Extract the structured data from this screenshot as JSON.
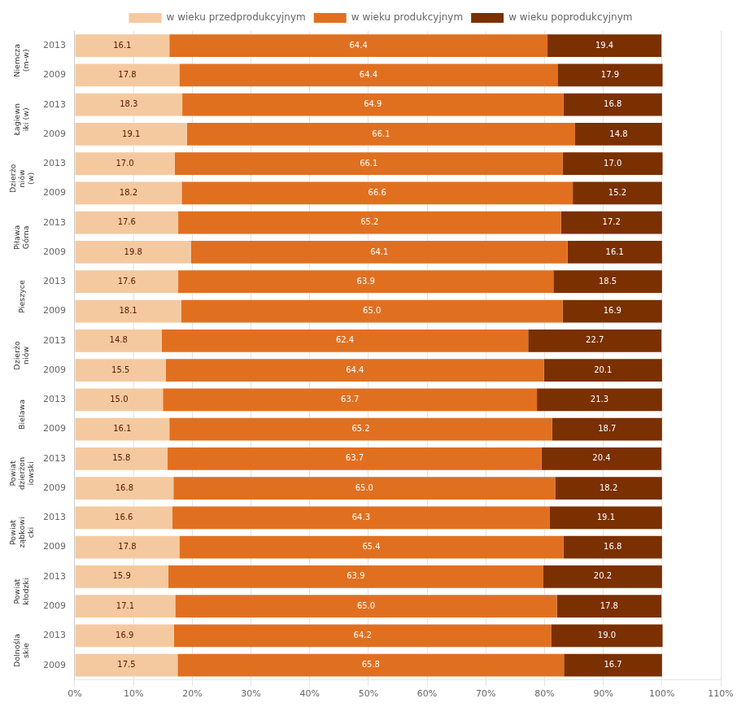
{
  "chart_data": {
    "type": "bar",
    "orientation": "horizontal",
    "stacked": true,
    "data_labels": true,
    "grid": "x",
    "legend": "top",
    "categories": [
      "2013",
      "2009",
      "2013",
      "2009",
      "2013",
      "2009",
      "2013",
      "2009",
      "2013",
      "2009",
      "2013",
      "2009",
      "2013",
      "2009",
      "2013",
      "2009",
      "2013",
      "2009",
      "2013",
      "2009",
      "2013",
      "2009"
    ],
    "group_labels": [
      "Niemcza\n(m-w)",
      "Łagiewn\niki (w)",
      "Dzierżo\nniów\n(w)",
      "Piława\nGórna",
      "Pieszyce",
      "Dzierżo\nniów",
      "Bielawa",
      "Powiat\ndzierżon\niowski",
      "Powiat\nząbkowi\ncki",
      "Powiat\nkłodzki",
      "Dolnośla\nskie"
    ],
    "series": [
      {
        "name": "w wieku przedprodukcyjnym",
        "color": "#f5c9a0",
        "values": [
          16.1,
          17.8,
          18.3,
          19.1,
          17.0,
          18.2,
          17.6,
          19.8,
          17.6,
          18.1,
          14.8,
          15.5,
          15.0,
          16.1,
          15.8,
          16.8,
          16.6,
          17.8,
          15.9,
          17.1,
          16.9,
          17.5
        ],
        "value_labels": [
          "16.1",
          "17.8",
          "18.3",
          "19.1",
          "17.0",
          "18.2",
          "17.6",
          "19.8",
          "17.6",
          "18.1",
          "14.8",
          "15.5",
          "15.0",
          "16.1",
          "15.8",
          "16.8",
          "16.6",
          "17.8",
          "15.9",
          "17.1",
          "16.9",
          "17.5"
        ]
      },
      {
        "name": "w wieku produkcyjnym",
        "color": "#e07020",
        "values": [
          64.4,
          64.4,
          64.9,
          66.1,
          66.1,
          66.6,
          65.2,
          64.1,
          63.9,
          65.0,
          62.4,
          64.4,
          63.7,
          65.2,
          63.7,
          65.0,
          64.3,
          65.4,
          63.9,
          65.0,
          64.2,
          65.8
        ],
        "value_labels": [
          "64.4",
          "64.4",
          "64.9",
          "66.1",
          "66.1",
          "66.6",
          "65.2",
          "64.1",
          "63.9",
          "65.0",
          "62.4",
          "64.4",
          "63.7",
          "65.2",
          "63.7",
          "65.0",
          "64.3",
          "65.4",
          "63.9",
          "65.0",
          "64.2",
          "65.8"
        ]
      },
      {
        "name": "w wieku poprodukcyjnym",
        "color": "#7a3000",
        "values": [
          19.4,
          17.9,
          16.8,
          14.8,
          17.0,
          15.2,
          17.2,
          16.1,
          18.5,
          16.9,
          22.7,
          20.1,
          21.3,
          18.7,
          20.4,
          18.2,
          19.1,
          16.8,
          20.2,
          17.8,
          19.0,
          16.7
        ],
        "value_labels": [
          "19.4",
          "17.9",
          "16.8",
          "14.8",
          "17.0",
          "15.2",
          "17.2",
          "16.1",
          "18.5",
          "16.9",
          "22.7",
          "20.1",
          "21.3",
          "18.7",
          "20.4",
          "18.2",
          "19.1",
          "16.8",
          "20.2",
          "17.8",
          "19.0",
          "16.7"
        ]
      }
    ],
    "xlim": [
      0,
      110
    ],
    "xticks": [
      {
        "value": 0,
        "label": "0%"
      },
      {
        "value": 10,
        "label": "10%"
      },
      {
        "value": 20,
        "label": "20%"
      },
      {
        "value": 30,
        "label": "30%"
      },
      {
        "value": 40,
        "label": "40%"
      },
      {
        "value": 50,
        "label": "50%"
      },
      {
        "value": 60,
        "label": "60%"
      },
      {
        "value": 70,
        "label": "70%"
      },
      {
        "value": 80,
        "label": "80%"
      },
      {
        "value": 90,
        "label": "90%"
      },
      {
        "value": 100,
        "label": "100%"
      },
      {
        "value": 110,
        "label": "110%"
      }
    ]
  }
}
